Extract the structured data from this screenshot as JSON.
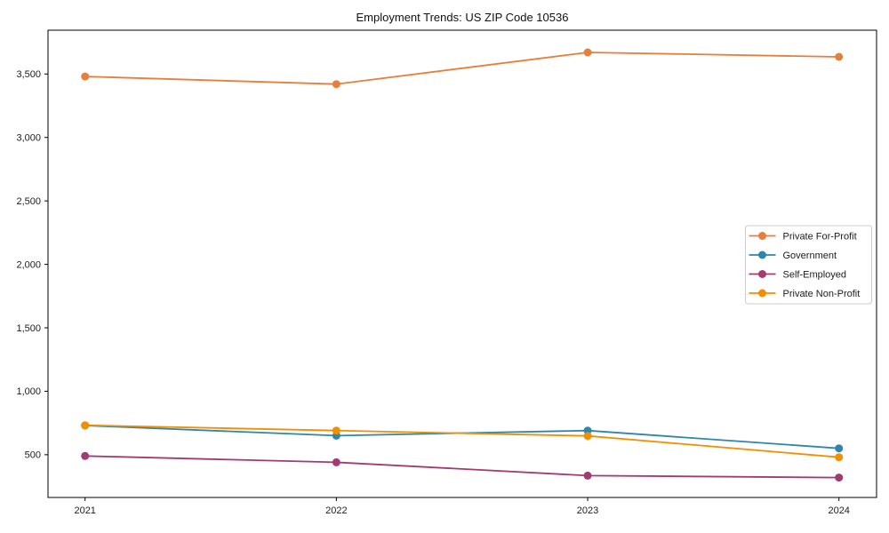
{
  "chart_data": {
    "type": "line",
    "title": "Employment Trends: US ZIP Code 10536",
    "categories": [
      "2021",
      "2022",
      "2023",
      "2024"
    ],
    "series": [
      {
        "name": "Private For-Profit",
        "color": "#E67F3B",
        "values": [
          3480,
          3420,
          3670,
          3635
        ]
      },
      {
        "name": "Government",
        "color": "#2E86AB",
        "values": [
          730,
          650,
          690,
          550
        ]
      },
      {
        "name": "Self-Employed",
        "color": "#A23B72",
        "values": [
          490,
          440,
          335,
          320
        ]
      },
      {
        "name": "Private Non-Profit",
        "color": "#F18F01",
        "values": [
          732,
          690,
          648,
          480
        ]
      }
    ],
    "xlabel": "",
    "ylabel": "",
    "ylim": [
      163,
      3845
    ],
    "yticks": [
      500,
      1000,
      1500,
      2000,
      2500,
      3000,
      3500
    ],
    "ytick_labels": [
      "500",
      "1,000",
      "1,500",
      "2,000",
      "2,500",
      "3,000",
      "3,500"
    ],
    "grid": false,
    "marker": "circle",
    "legend_position": "center-right",
    "colors": {
      "axis": "#000000",
      "tick_text": "#1c1c1c",
      "title_text": "#111111",
      "legend_border": "#cccccc",
      "legend_background": "#ffffff",
      "plot_background": "#ffffff"
    }
  }
}
